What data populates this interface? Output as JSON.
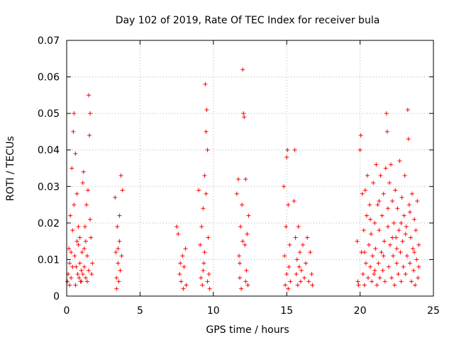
{
  "chart_data": {
    "type": "scatter",
    "title": "Day 102 of 2019, Rate Of TEC Index for receiver bula",
    "xlabel": "GPS time / hours",
    "ylabel": "ROTI / TECUs",
    "xlim": [
      0,
      25
    ],
    "ylim": [
      0,
      0.07
    ],
    "xticks": [
      0,
      5,
      10,
      15,
      20,
      25
    ],
    "xtick_labels": [
      "0",
      "5",
      "10",
      "15",
      "20",
      "25"
    ],
    "yticks": [
      0,
      0.01,
      0.02,
      0.03,
      0.04,
      0.05,
      0.06,
      0.07
    ],
    "ytick_labels": [
      "0",
      "0.01",
      "0.02",
      "0.03",
      "0.04",
      "0.05",
      "0.06",
      "0.07"
    ],
    "grid": true,
    "marker": "+",
    "color": "#ff0000",
    "series": [
      {
        "name": "ROTI",
        "points": [
          [
            0.05,
            0.004
          ],
          [
            0.1,
            0.006
          ],
          [
            0.15,
            0.013
          ],
          [
            0.2,
            0.009
          ],
          [
            0.25,
            0.022
          ],
          [
            0.3,
            0.005
          ],
          [
            0.35,
            0.035
          ],
          [
            0.4,
            0.018
          ],
          [
            0.45,
            0.045
          ],
          [
            0.5,
            0.05
          ],
          [
            0.55,
            0.011
          ],
          [
            0.6,
            0.039
          ],
          [
            0.65,
            0.008
          ],
          [
            0.7,
            0.028
          ],
          [
            0.75,
            0.006
          ],
          [
            0.8,
            0.014
          ],
          [
            0.85,
            0.005
          ],
          [
            0.9,
            0.009
          ],
          [
            0.95,
            0.004
          ],
          [
            1.0,
            0.007
          ],
          [
            1.05,
            0.012
          ],
          [
            1.1,
            0.031
          ],
          [
            1.15,
            0.034
          ],
          [
            1.2,
            0.008
          ],
          [
            1.25,
            0.019
          ],
          [
            1.3,
            0.005
          ],
          [
            1.35,
            0.025
          ],
          [
            1.4,
            0.011
          ],
          [
            1.45,
            0.029
          ],
          [
            1.5,
            0.055
          ],
          [
            1.55,
            0.044
          ],
          [
            1.6,
            0.05
          ],
          [
            1.65,
            0.016
          ],
          [
            1.7,
            0.006
          ],
          [
            1.75,
            0.009
          ],
          [
            0.2,
            0.003
          ],
          [
            0.3,
            0.012
          ],
          [
            0.5,
            0.025
          ],
          [
            0.6,
            0.003
          ],
          [
            0.8,
            0.019
          ],
          [
            0.9,
            0.016
          ],
          [
            1.0,
            0.004
          ],
          [
            1.2,
            0.013
          ],
          [
            1.4,
            0.004
          ],
          [
            1.6,
            0.021
          ],
          [
            0.4,
            0.008
          ],
          [
            0.7,
            0.015
          ],
          [
            1.1,
            0.006
          ],
          [
            1.3,
            0.015
          ],
          [
            1.5,
            0.007
          ],
          [
            3.3,
            0.027
          ],
          [
            3.35,
            0.012
          ],
          [
            3.4,
            0.005
          ],
          [
            3.45,
            0.019
          ],
          [
            3.5,
            0.009
          ],
          [
            3.55,
            0.004
          ],
          [
            3.6,
            0.015
          ],
          [
            3.65,
            0.007
          ],
          [
            3.7,
            0.033
          ],
          [
            3.75,
            0.011
          ],
          [
            3.8,
            0.029
          ],
          [
            3.4,
            0.002
          ],
          [
            3.6,
            0.022
          ],
          [
            3.5,
            0.013
          ],
          [
            7.5,
            0.019
          ],
          [
            7.6,
            0.017
          ],
          [
            7.7,
            0.006
          ],
          [
            7.8,
            0.004
          ],
          [
            7.9,
            0.011
          ],
          [
            8.0,
            0.008
          ],
          [
            8.1,
            0.013
          ],
          [
            8.15,
            0.003
          ],
          [
            7.75,
            0.009
          ],
          [
            7.95,
            0.002
          ],
          [
            9.0,
            0.029
          ],
          [
            9.1,
            0.014
          ],
          [
            9.15,
            0.005
          ],
          [
            9.2,
            0.019
          ],
          [
            9.25,
            0.003
          ],
          [
            9.3,
            0.024
          ],
          [
            9.35,
            0.009
          ],
          [
            9.4,
            0.033
          ],
          [
            9.45,
            0.058
          ],
          [
            9.5,
            0.045
          ],
          [
            9.55,
            0.051
          ],
          [
            9.6,
            0.04
          ],
          [
            9.65,
            0.016
          ],
          [
            9.7,
            0.006
          ],
          [
            9.75,
            0.002
          ],
          [
            9.4,
            0.012
          ],
          [
            9.5,
            0.028
          ],
          [
            9.6,
            0.004
          ],
          [
            9.3,
            0.007
          ],
          [
            11.6,
            0.028
          ],
          [
            11.7,
            0.032
          ],
          [
            11.75,
            0.011
          ],
          [
            11.8,
            0.005
          ],
          [
            11.85,
            0.019
          ],
          [
            11.9,
            0.002
          ],
          [
            11.95,
            0.025
          ],
          [
            12.0,
            0.062
          ],
          [
            12.05,
            0.05
          ],
          [
            12.1,
            0.049
          ],
          [
            12.15,
            0.014
          ],
          [
            12.2,
            0.032
          ],
          [
            12.25,
            0.007
          ],
          [
            12.3,
            0.017
          ],
          [
            12.35,
            0.003
          ],
          [
            12.4,
            0.022
          ],
          [
            11.8,
            0.009
          ],
          [
            12.0,
            0.015
          ],
          [
            12.2,
            0.004
          ],
          [
            14.8,
            0.03
          ],
          [
            14.85,
            0.011
          ],
          [
            14.9,
            0.003
          ],
          [
            14.95,
            0.019
          ],
          [
            15.0,
            0.038
          ],
          [
            15.05,
            0.04
          ],
          [
            15.1,
            0.025
          ],
          [
            15.15,
            0.008
          ],
          [
            15.2,
            0.014
          ],
          [
            15.25,
            0.004
          ],
          [
            15.0,
            0.006
          ],
          [
            15.1,
            0.002
          ],
          [
            15.5,
            0.026
          ],
          [
            15.55,
            0.04
          ],
          [
            15.6,
            0.016
          ],
          [
            15.65,
            0.006
          ],
          [
            15.7,
            0.01
          ],
          [
            15.75,
            0.003
          ],
          [
            15.8,
            0.019
          ],
          [
            15.85,
            0.008
          ],
          [
            15.9,
            0.012
          ],
          [
            15.95,
            0.004
          ],
          [
            16.0,
            0.007
          ],
          [
            16.1,
            0.014
          ],
          [
            16.2,
            0.005
          ],
          [
            16.3,
            0.009
          ],
          [
            16.4,
            0.016
          ],
          [
            16.5,
            0.004
          ],
          [
            16.6,
            0.012
          ],
          [
            16.7,
            0.006
          ],
          [
            16.75,
            0.003
          ],
          [
            19.8,
            0.015
          ],
          [
            19.85,
            0.004
          ],
          [
            19.9,
            0.003
          ],
          [
            20.0,
            0.04
          ],
          [
            20.05,
            0.044
          ],
          [
            20.1,
            0.012
          ],
          [
            20.15,
            0.028
          ],
          [
            20.2,
            0.006
          ],
          [
            20.25,
            0.018
          ],
          [
            20.3,
            0.003
          ],
          [
            20.35,
            0.029
          ],
          [
            20.4,
            0.009
          ],
          [
            20.45,
            0.022
          ],
          [
            20.5,
            0.033
          ],
          [
            20.55,
            0.005
          ],
          [
            20.6,
            0.014
          ],
          [
            20.65,
            0.025
          ],
          [
            20.7,
            0.008
          ],
          [
            20.75,
            0.017
          ],
          [
            20.8,
            0.004
          ],
          [
            20.85,
            0.011
          ],
          [
            20.9,
            0.031
          ],
          [
            20.95,
            0.006
          ],
          [
            21.0,
            0.02
          ],
          [
            21.05,
            0.013
          ],
          [
            21.1,
            0.036
          ],
          [
            21.15,
            0.003
          ],
          [
            21.2,
            0.025
          ],
          [
            21.25,
            0.009
          ],
          [
            21.3,
            0.018
          ],
          [
            21.35,
            0.005
          ],
          [
            21.4,
            0.033
          ],
          [
            21.45,
            0.012
          ],
          [
            21.5,
            0.022
          ],
          [
            21.55,
            0.007
          ],
          [
            21.6,
            0.028
          ],
          [
            21.65,
            0.015
          ],
          [
            21.7,
            0.004
          ],
          [
            21.75,
            0.035
          ],
          [
            21.8,
            0.05
          ],
          [
            21.85,
            0.045
          ],
          [
            21.9,
            0.019
          ],
          [
            21.95,
            0.008
          ],
          [
            22.0,
            0.031
          ],
          [
            22.05,
            0.014
          ],
          [
            22.1,
            0.036
          ],
          [
            22.15,
            0.005
          ],
          [
            22.2,
            0.026
          ],
          [
            22.25,
            0.011
          ],
          [
            22.3,
            0.02
          ],
          [
            22.35,
            0.003
          ],
          [
            22.4,
            0.029
          ],
          [
            22.45,
            0.016
          ],
          [
            22.5,
            0.009
          ],
          [
            22.55,
            0.024
          ],
          [
            22.6,
            0.006
          ],
          [
            22.65,
            0.018
          ],
          [
            22.7,
            0.037
          ],
          [
            22.75,
            0.012
          ],
          [
            22.8,
            0.004
          ],
          [
            22.85,
            0.027
          ],
          [
            22.9,
            0.015
          ],
          [
            22.95,
            0.008
          ],
          [
            23.0,
            0.022
          ],
          [
            23.05,
            0.033
          ],
          [
            23.1,
            0.006
          ],
          [
            23.15,
            0.019
          ],
          [
            23.2,
            0.011
          ],
          [
            23.25,
            0.051
          ],
          [
            23.3,
            0.043
          ],
          [
            23.35,
            0.025
          ],
          [
            23.4,
            0.009
          ],
          [
            23.45,
            0.016
          ],
          [
            23.5,
            0.004
          ],
          [
            23.55,
            0.028
          ],
          [
            23.6,
            0.013
          ],
          [
            23.65,
            0.007
          ],
          [
            23.7,
            0.021
          ],
          [
            23.75,
            0.003
          ],
          [
            23.8,
            0.018
          ],
          [
            23.85,
            0.01
          ],
          [
            23.9,
            0.026
          ],
          [
            23.95,
            0.005
          ],
          [
            24.0,
            0.014
          ],
          [
            20.3,
            0.012
          ],
          [
            20.7,
            0.021
          ],
          [
            21.0,
            0.007
          ],
          [
            21.3,
            0.026
          ],
          [
            21.6,
            0.011
          ],
          [
            21.9,
            0.024
          ],
          [
            22.2,
            0.016
          ],
          [
            22.5,
            0.013
          ],
          [
            22.8,
            0.02
          ],
          [
            23.1,
            0.017
          ],
          [
            23.4,
            0.023
          ],
          [
            23.7,
            0.012
          ],
          [
            24.0,
            0.008
          ]
        ]
      }
    ]
  }
}
